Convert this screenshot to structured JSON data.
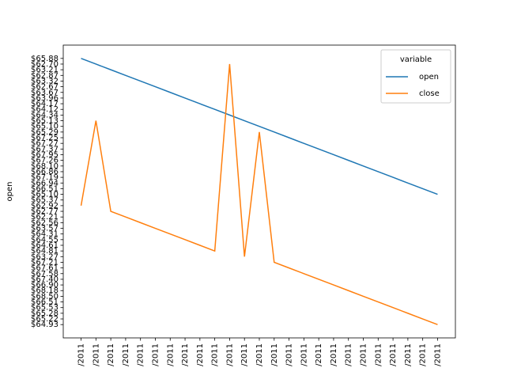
{
  "chart_data": {
    "type": "line",
    "y_label": "open",
    "legend_title": "variable",
    "legend_position": "upper right",
    "categories": [
      "/2011",
      "/2011",
      "/2011",
      "/2011",
      "/2011",
      "/2011",
      "/2011",
      "/2011",
      "/2011",
      "/2011",
      "/2011",
      "/2011",
      "/2011",
      "/2011",
      "/2011",
      "/2011",
      "/2011",
      "/2011",
      "/2011",
      "/2011",
      "/2011",
      "/2011",
      "/2011",
      "/2011",
      "/2011"
    ],
    "xlim": [
      -1.2,
      25.2
    ],
    "ylim": [
      -2.35,
      49.35
    ],
    "yticks": [
      {
        "value": 0,
        "label": "$64.93"
      },
      {
        "value": 1,
        "label": "$65.22"
      },
      {
        "value": 2,
        "label": "$65.28"
      },
      {
        "value": 3,
        "label": "$65.53"
      },
      {
        "value": 4,
        "label": "$66.51"
      },
      {
        "value": 5,
        "label": "$68.50"
      },
      {
        "value": 6,
        "label": "$68.18"
      },
      {
        "value": 7,
        "label": "$66.90"
      },
      {
        "value": 8,
        "label": "$67.40"
      },
      {
        "value": 9,
        "label": "$67.58"
      },
      {
        "value": 10,
        "label": "$67.61"
      },
      {
        "value": 11,
        "label": "$67.21"
      },
      {
        "value": 12,
        "label": "$63.27"
      },
      {
        "value": 13,
        "label": "$64.81"
      },
      {
        "value": 14,
        "label": "$64.61"
      },
      {
        "value": 15,
        "label": "$64.55"
      },
      {
        "value": 16,
        "label": "$64.31"
      },
      {
        "value": 17,
        "label": "$63.57"
      },
      {
        "value": 18,
        "label": "$62.56"
      },
      {
        "value": 19,
        "label": "$62.21"
      },
      {
        "value": 20,
        "label": "$62.77"
      },
      {
        "value": 21,
        "label": "$62.92"
      },
      {
        "value": 22,
        "label": "$65.37"
      },
      {
        "value": 23,
        "label": "$65.10"
      },
      {
        "value": 24,
        "label": "$66.51"
      },
      {
        "value": 25,
        "label": "$66.94"
      },
      {
        "value": 26,
        "label": "$67.19"
      },
      {
        "value": 27,
        "label": "$66.86"
      },
      {
        "value": 28,
        "label": "$68.10"
      },
      {
        "value": 29,
        "label": "$67.26"
      },
      {
        "value": 30,
        "label": "$67.95"
      },
      {
        "value": 31,
        "label": "$67.37"
      },
      {
        "value": 32,
        "label": "$67.27"
      },
      {
        "value": 33,
        "label": "$67.25"
      },
      {
        "value": 34,
        "label": "$65.29"
      },
      {
        "value": 35,
        "label": "$65.10"
      },
      {
        "value": 36,
        "label": "$65.13"
      },
      {
        "value": 37,
        "label": "$64.34"
      },
      {
        "value": 38,
        "label": "$64.12"
      },
      {
        "value": 39,
        "label": "$64.17"
      },
      {
        "value": 40,
        "label": "$63.96"
      },
      {
        "value": 41,
        "label": "$63.67"
      },
      {
        "value": 42,
        "label": "$62.67"
      },
      {
        "value": 43,
        "label": "$63.32"
      },
      {
        "value": 44,
        "label": "$62.87"
      },
      {
        "value": 45,
        "label": "$63.21"
      },
      {
        "value": 46,
        "label": "$62.70"
      },
      {
        "value": 47,
        "label": "$65.88"
      }
    ],
    "series": [
      {
        "name": "open",
        "color": "#1f77b4",
        "values": [
          47,
          46,
          45,
          44,
          43,
          42,
          41,
          40,
          39,
          38,
          37,
          36,
          35,
          34,
          33,
          32,
          31,
          30,
          29,
          28,
          27,
          26,
          25,
          24,
          23
        ]
      },
      {
        "name": "close",
        "color": "#ff7f0e",
        "values": [
          21,
          36,
          20,
          19,
          18,
          17,
          16,
          15,
          14,
          13,
          46,
          12,
          34,
          11,
          10,
          9,
          8,
          7,
          6,
          5,
          4,
          3,
          2,
          1,
          0
        ]
      }
    ]
  }
}
